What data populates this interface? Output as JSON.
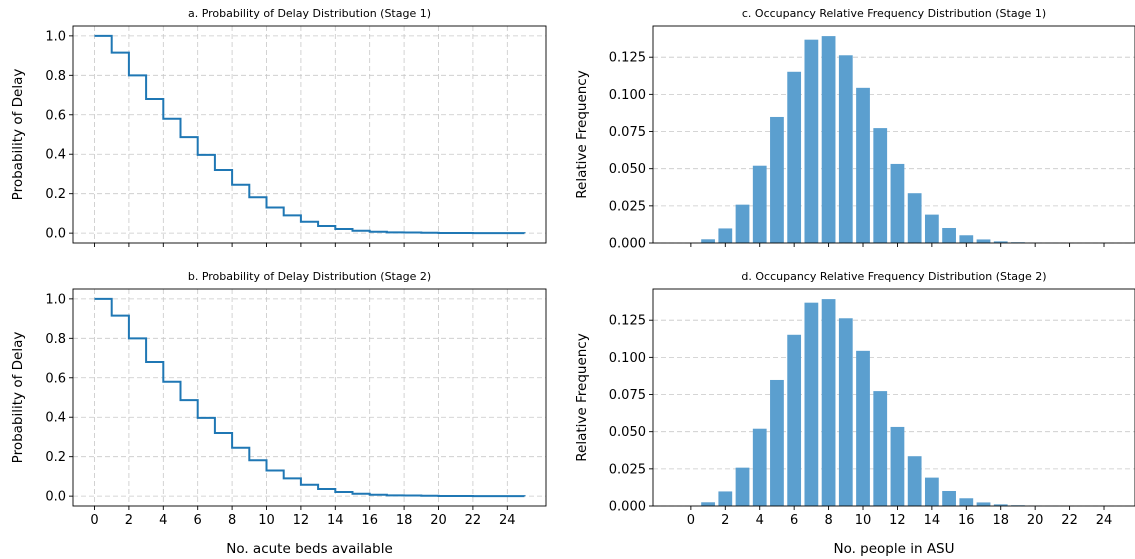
{
  "chart_data": [
    {
      "id": "a",
      "type": "line",
      "step": "post",
      "title": "a. Probability of Delay Distribution (Stage 1)",
      "xlabel": "",
      "ylabel": "Probability of Delay",
      "xlim": [
        -1.25,
        26.25
      ],
      "ylim": [
        -0.05,
        1.05
      ],
      "xticks": [
        0,
        2,
        4,
        6,
        8,
        10,
        12,
        14,
        16,
        18,
        20,
        22,
        24
      ],
      "xtick_labels_visible": false,
      "yticks": [
        0.0,
        0.2,
        0.4,
        0.6,
        0.8,
        1.0
      ],
      "ytick_labels": [
        "0.0",
        "0.2",
        "0.4",
        "0.6",
        "0.8",
        "1.0"
      ],
      "grid": true,
      "color": "#1f77b4",
      "x": [
        0,
        1,
        2,
        3,
        4,
        5,
        6,
        7,
        8,
        9,
        10,
        11,
        12,
        13,
        14,
        15,
        16,
        17,
        18,
        19,
        20,
        21,
        22,
        23,
        24,
        25
      ],
      "y": [
        1.0,
        0.915,
        0.8,
        0.68,
        0.58,
        0.487,
        0.397,
        0.32,
        0.245,
        0.182,
        0.13,
        0.09,
        0.058,
        0.036,
        0.021,
        0.012,
        0.007,
        0.004,
        0.003,
        0.002,
        0.001,
        0.0005,
        0.0003,
        0.0002,
        0.0001,
        0.0
      ]
    },
    {
      "id": "c",
      "type": "bar",
      "title": "c. Occupancy Relative Frequency Distribution (Stage 1)",
      "xlabel": "",
      "ylabel": "Relative Frequency",
      "xlim": [
        -2.2,
        25.8
      ],
      "ylim": [
        0,
        0.146
      ],
      "xticks": [
        0,
        2,
        4,
        6,
        8,
        10,
        12,
        14,
        16,
        18,
        20,
        22,
        24
      ],
      "xtick_labels_visible": false,
      "yticks": [
        0.0,
        0.025,
        0.05,
        0.075,
        0.1,
        0.125
      ],
      "ytick_labels": [
        "0.000",
        "0.025",
        "0.050",
        "0.075",
        "0.100",
        "0.125"
      ],
      "grid": "y",
      "color": "#5b9fcf",
      "x": [
        0,
        1,
        2,
        3,
        4,
        5,
        6,
        7,
        8,
        9,
        10,
        11,
        12,
        13,
        14,
        15,
        16,
        17,
        18,
        19,
        20,
        21,
        22,
        23,
        24,
        25
      ],
      "values": [
        0.0,
        0.0025,
        0.0098,
        0.0258,
        0.052,
        0.0848,
        0.1152,
        0.1368,
        0.1392,
        0.1263,
        0.1044,
        0.0773,
        0.0532,
        0.0335,
        0.0191,
        0.0101,
        0.0052,
        0.0024,
        0.0011,
        0.0005,
        0.0002,
        0.0001,
        0.0,
        0.0,
        0.0,
        0.0
      ]
    },
    {
      "id": "b",
      "type": "line",
      "step": "post",
      "title": "b. Probability of Delay Distribution (Stage 2)",
      "xlabel": "No. acute beds available",
      "ylabel": "Probability of Delay",
      "xlim": [
        -1.25,
        26.25
      ],
      "ylim": [
        -0.05,
        1.05
      ],
      "xticks": [
        0,
        2,
        4,
        6,
        8,
        10,
        12,
        14,
        16,
        18,
        20,
        22,
        24
      ],
      "xtick_labels_visible": true,
      "xtick_labels": [
        "0",
        "2",
        "4",
        "6",
        "8",
        "10",
        "12",
        "14",
        "16",
        "18",
        "20",
        "22",
        "24"
      ],
      "yticks": [
        0.0,
        0.2,
        0.4,
        0.6,
        0.8,
        1.0
      ],
      "ytick_labels": [
        "0.0",
        "0.2",
        "0.4",
        "0.6",
        "0.8",
        "1.0"
      ],
      "grid": true,
      "color": "#1f77b4",
      "x": [
        0,
        1,
        2,
        3,
        4,
        5,
        6,
        7,
        8,
        9,
        10,
        11,
        12,
        13,
        14,
        15,
        16,
        17,
        18,
        19,
        20,
        21,
        22,
        23,
        24,
        25
      ],
      "y": [
        1.0,
        0.915,
        0.8,
        0.68,
        0.58,
        0.487,
        0.397,
        0.32,
        0.245,
        0.182,
        0.13,
        0.09,
        0.058,
        0.036,
        0.021,
        0.012,
        0.007,
        0.004,
        0.003,
        0.002,
        0.001,
        0.0005,
        0.0003,
        0.0002,
        0.0001,
        0.0
      ]
    },
    {
      "id": "d",
      "type": "bar",
      "title": "d. Occupancy Relative Frequency Distribution (Stage 2)",
      "xlabel": "No. people in ASU",
      "ylabel": "Relative Frequency",
      "xlim": [
        -2.2,
        25.8
      ],
      "ylim": [
        0,
        0.146
      ],
      "xticks": [
        0,
        2,
        4,
        6,
        8,
        10,
        12,
        14,
        16,
        18,
        20,
        22,
        24
      ],
      "xtick_labels_visible": true,
      "xtick_labels": [
        "0",
        "2",
        "4",
        "6",
        "8",
        "10",
        "12",
        "14",
        "16",
        "18",
        "20",
        "22",
        "24"
      ],
      "yticks": [
        0.0,
        0.025,
        0.05,
        0.075,
        0.1,
        0.125
      ],
      "ytick_labels": [
        "0.000",
        "0.025",
        "0.050",
        "0.075",
        "0.100",
        "0.125"
      ],
      "grid": "y",
      "color": "#5b9fcf",
      "x": [
        0,
        1,
        2,
        3,
        4,
        5,
        6,
        7,
        8,
        9,
        10,
        11,
        12,
        13,
        14,
        15,
        16,
        17,
        18,
        19,
        20,
        21,
        22,
        23,
        24,
        25
      ],
      "values": [
        0.0,
        0.0025,
        0.0098,
        0.0258,
        0.052,
        0.0848,
        0.1152,
        0.1368,
        0.1392,
        0.1263,
        0.1044,
        0.0773,
        0.0532,
        0.0335,
        0.0191,
        0.0101,
        0.0052,
        0.0024,
        0.0011,
        0.0005,
        0.0002,
        0.0001,
        0.0,
        0.0,
        0.0,
        0.0
      ]
    }
  ]
}
